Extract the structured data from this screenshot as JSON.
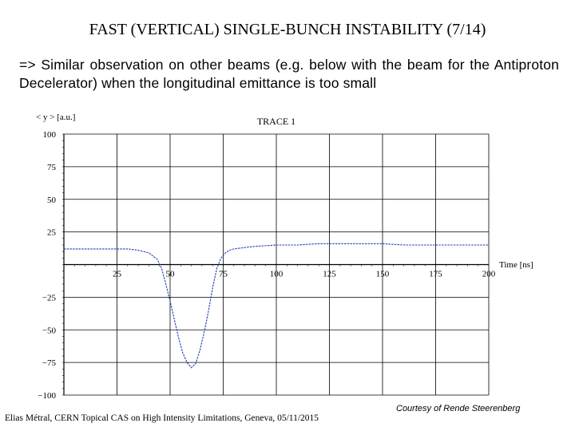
{
  "slide": {
    "title": "FAST (VERTICAL) SINGLE-BUNCH INSTABILITY (7/14)",
    "body": "=> Similar observation on other beams (e.g. below with the beam for the Antiproton Decelerator) when the longitudinal emittance is too small",
    "footer_left": "Elias Métral, CERN Topical CAS on High Intensity Limitations, Geneva, 05/11/2015",
    "footer_right": "Courtesy of Rende Steerenberg"
  },
  "chart_data": {
    "type": "line",
    "title": "TRACE 1",
    "ylabel": "< y >  [a.u.]",
    "xlabel": "Time [ns]",
    "xlim": [
      0,
      200
    ],
    "ylim": [
      -100,
      100
    ],
    "x_ticks": [
      25,
      50,
      75,
      100,
      125,
      150,
      175,
      200
    ],
    "x_tick_labels": [
      "25",
      "50",
      "75",
      "100",
      "125",
      "150",
      "175",
      "200"
    ],
    "y_ticks": [
      100,
      75,
      50,
      25,
      -25,
      -50,
      -75,
      -100
    ],
    "y_tick_labels": [
      "100",
      "75",
      "50",
      "25",
      "−25",
      "−50",
      "−75",
      "−100"
    ],
    "grid": true,
    "line_color": "#1f3fb4",
    "series": [
      {
        "x": [
          0,
          10,
          20,
          30,
          35,
          40,
          44,
          46,
          48,
          50,
          52,
          54,
          56,
          58,
          60,
          62,
          64,
          66,
          68,
          70,
          72,
          74,
          76,
          78,
          80,
          85,
          90,
          100,
          110,
          120,
          130,
          140,
          150,
          160,
          170,
          180,
          190,
          200
        ],
        "values": [
          12,
          12,
          12,
          12,
          11,
          9,
          4,
          -3,
          -15,
          -28,
          -42,
          -56,
          -68,
          -75,
          -79,
          -76,
          -66,
          -52,
          -36,
          -18,
          -3,
          5,
          9,
          11,
          12,
          13,
          14,
          15,
          15,
          16,
          16,
          16,
          16,
          15,
          15,
          15,
          15,
          15
        ]
      }
    ]
  }
}
